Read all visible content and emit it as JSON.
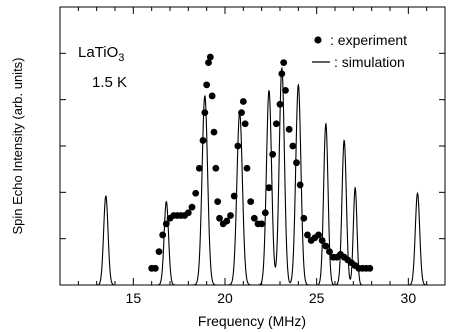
{
  "chart_data": {
    "type": "scatter",
    "xlabel": "Frequency (MHz)",
    "ylabel": "Spin Echo Intensity (arb. units)",
    "xlim": [
      11,
      32
    ],
    "ylim": [
      0,
      1.0
    ],
    "x_ticks": [
      15,
      20,
      25,
      30
    ],
    "annotation": {
      "compound_base": "LaTiO",
      "compound_sub": "3",
      "temperature": "1.5 K"
    },
    "legend": {
      "placement": "top-right",
      "experiment_label": ": experiment",
      "simulation_label": ": simulation"
    },
    "series": [
      {
        "name": "experiment",
        "kind": "points",
        "points": [
          [
            16.0,
            0.06
          ],
          [
            16.2,
            0.06
          ],
          [
            16.4,
            0.12
          ],
          [
            16.6,
            0.18
          ],
          [
            16.8,
            0.22
          ],
          [
            17.0,
            0.24
          ],
          [
            17.2,
            0.25
          ],
          [
            17.4,
            0.25
          ],
          [
            17.6,
            0.25
          ],
          [
            17.8,
            0.25
          ],
          [
            18.0,
            0.26
          ],
          [
            18.2,
            0.28
          ],
          [
            18.4,
            0.33
          ],
          [
            18.6,
            0.42
          ],
          [
            18.8,
            0.52
          ],
          [
            18.9,
            0.62
          ],
          [
            19.0,
            0.72
          ],
          [
            19.1,
            0.8
          ],
          [
            19.2,
            0.82
          ],
          [
            19.3,
            0.68
          ],
          [
            19.4,
            0.55
          ],
          [
            19.5,
            0.42
          ],
          [
            19.6,
            0.3
          ],
          [
            19.7,
            0.24
          ],
          [
            19.9,
            0.22
          ],
          [
            20.1,
            0.23
          ],
          [
            20.3,
            0.25
          ],
          [
            20.5,
            0.32
          ],
          [
            20.7,
            0.5
          ],
          [
            20.9,
            0.62
          ],
          [
            21.0,
            0.66
          ],
          [
            21.1,
            0.58
          ],
          [
            21.2,
            0.42
          ],
          [
            21.4,
            0.3
          ],
          [
            21.6,
            0.24
          ],
          [
            21.8,
            0.22
          ],
          [
            22.0,
            0.22
          ],
          [
            22.2,
            0.26
          ],
          [
            22.4,
            0.35
          ],
          [
            22.6,
            0.47
          ],
          [
            22.8,
            0.58
          ],
          [
            23.0,
            0.65
          ],
          [
            23.1,
            0.76
          ],
          [
            23.2,
            0.8
          ],
          [
            23.3,
            0.7
          ],
          [
            23.5,
            0.56
          ],
          [
            23.7,
            0.5
          ],
          [
            23.9,
            0.44
          ],
          [
            24.1,
            0.36
          ],
          [
            24.3,
            0.24
          ],
          [
            24.5,
            0.18
          ],
          [
            24.7,
            0.16
          ],
          [
            24.9,
            0.17
          ],
          [
            25.1,
            0.18
          ],
          [
            25.3,
            0.16
          ],
          [
            25.5,
            0.14
          ],
          [
            25.7,
            0.12
          ],
          [
            25.9,
            0.1
          ],
          [
            26.1,
            0.1
          ],
          [
            26.3,
            0.11
          ],
          [
            26.5,
            0.1
          ],
          [
            26.7,
            0.09
          ],
          [
            26.9,
            0.08
          ],
          [
            27.1,
            0.07
          ],
          [
            27.3,
            0.06
          ],
          [
            27.5,
            0.06
          ],
          [
            27.7,
            0.06
          ],
          [
            27.9,
            0.06
          ]
        ]
      },
      {
        "name": "simulation",
        "kind": "line",
        "peaks": [
          [
            13.5,
            0.32,
            0.12
          ],
          [
            16.8,
            0.3,
            0.12
          ],
          [
            18.9,
            0.68,
            0.15
          ],
          [
            20.8,
            0.62,
            0.15
          ],
          [
            22.4,
            0.7,
            0.14
          ],
          [
            23.1,
            0.78,
            0.14
          ],
          [
            24.0,
            0.72,
            0.14
          ],
          [
            25.5,
            0.58,
            0.12
          ],
          [
            26.5,
            0.52,
            0.12
          ],
          [
            27.1,
            0.35,
            0.1
          ],
          [
            30.5,
            0.33,
            0.12
          ]
        ]
      }
    ]
  }
}
